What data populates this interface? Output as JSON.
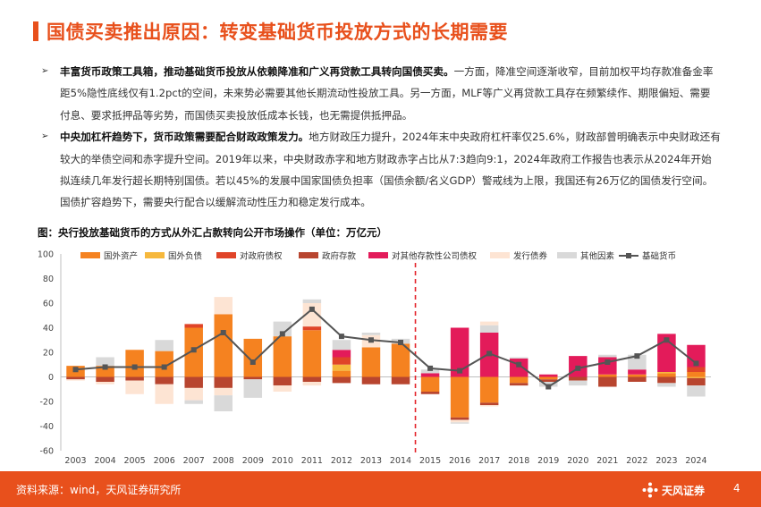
{
  "header": {
    "title": "国债买卖推出原因：转变基础货币投放方式的长期需要"
  },
  "bullets": [
    {
      "bold": "丰富货币政策工具箱，推动基础货币投放从依赖降准和广义再贷款工具转向国债买卖。",
      "text": "一方面，降准空间逐渐收窄，目前加权平均存款准备金率距5%隐性底线仅有1.2pct的空间，未来势必需要其他长期流动性投放工具。另一方面，MLF等广义再贷款工具存在频繁续作、期限偏短、需要付息、要求抵押品等劣势，而国债买卖投放低成本长钱，也无需提供抵押品。"
    },
    {
      "bold": "中央加杠杆趋势下，货币政策需要配合财政政策发力。",
      "text": "地方财政压力提升，2024年末中央政府杠杆率仅25.6%，财政部曾明确表示中央财政还有较大的举债空间和赤字提升空间。2019年以来，中央财政赤字和地方财政赤字占比从7:3趋向9:1，2024年政府工作报告也表示从2024年开始拟连续几年发行超长期特别国债。若以45%的发展中国家国债负担率（国债余额/名义GDP）警戒线为上限，我国还有26万亿的国债发行空间。国债扩容趋势下，需要央行配合以缓解流动性压力和稳定发行成本。"
    }
  ],
  "figure": {
    "caption": "图：央行投放基础货币的方式从外汇占款转向公开市场操作（单位：万亿元）"
  },
  "footer": {
    "source": "资料来源：wind，天风证券研究所",
    "logo_text": "天风证券",
    "page": "4"
  },
  "chart_data": {
    "type": "bar",
    "stacked": true,
    "categories": [
      "2003",
      "2004",
      "2005",
      "2006",
      "2007",
      "2008",
      "2009",
      "2010",
      "2011",
      "2012",
      "2013",
      "2014",
      "2015",
      "2016",
      "2017",
      "2018",
      "2019",
      "2020",
      "2021",
      "2022",
      "2023",
      "2024"
    ],
    "ylim": [
      -60,
      100
    ],
    "yticks": [
      -60,
      -40,
      -20,
      0,
      20,
      40,
      60,
      80,
      100
    ],
    "grid": false,
    "legend_position": "top",
    "divider_after": "2014",
    "series": [
      {
        "name": "国外资产",
        "color": "#f58220",
        "values": [
          9,
          9,
          22,
          21,
          40,
          51,
          31,
          33,
          38,
          5,
          24,
          27,
          -12,
          -33,
          -21,
          -5,
          -2,
          0,
          2,
          2,
          3,
          4
        ]
      },
      {
        "name": "国外负债",
        "color": "#f6b83c",
        "values": [
          0,
          0,
          0,
          0,
          0,
          0,
          0,
          0,
          0,
          5,
          0,
          0,
          0,
          0,
          0,
          0,
          0,
          0,
          0,
          0,
          1,
          -1
        ]
      },
      {
        "name": "对政府债权",
        "color": "#e04428",
        "values": [
          0,
          0,
          0,
          0,
          3,
          0,
          0,
          0,
          3,
          6,
          0,
          0,
          0,
          0,
          0,
          0,
          0,
          0,
          0,
          0,
          0,
          4
        ]
      },
      {
        "name": "政府存款",
        "color": "#b8452f",
        "values": [
          -2,
          -4,
          -3,
          -6,
          -9,
          -9,
          -2,
          -7,
          -4,
          -5,
          -6,
          -6,
          -2,
          -2,
          -2,
          -2,
          -2,
          -3,
          -8,
          -4,
          -5,
          -6
        ]
      },
      {
        "name": "对其他存款性公司债权",
        "color": "#e31b5a",
        "values": [
          0,
          0,
          0,
          0,
          0,
          0,
          0,
          0,
          0,
          6,
          0,
          0,
          3,
          40,
          36,
          15,
          2,
          17,
          14,
          4,
          31,
          18
        ]
      },
      {
        "name": "发行债券",
        "color": "#fde4d3",
        "values": [
          0,
          0,
          0,
          0,
          0,
          0,
          0,
          0,
          0,
          0,
          0,
          0,
          0,
          0,
          0,
          0,
          0,
          0,
          0,
          0,
          0,
          0
        ]
      },
      {
        "name": "其他因素",
        "color": "#d9d9d9",
        "values": [
          0,
          7,
          0,
          9,
          0,
          0,
          0,
          12,
          0,
          8,
          0,
          0,
          3,
          0,
          6,
          1,
          0,
          0,
          2,
          12,
          0,
          0
        ]
      }
    ],
    "neg_extra": [
      {
        "name": "发行债券",
        "color": "#fde4d3",
        "values": [
          -1,
          -2,
          -11,
          -16,
          -10,
          -6,
          0,
          -5,
          -3,
          0,
          0,
          0,
          0,
          -2,
          -1,
          0,
          0,
          0,
          0,
          0,
          0,
          0
        ]
      },
      {
        "name": "其他因素",
        "color": "#d9d9d9",
        "values": [
          0,
          0,
          0,
          0,
          -3,
          -13,
          -15,
          0,
          0,
          0,
          0,
          0,
          0,
          -1,
          0,
          0,
          -4,
          -4,
          0,
          0,
          -3,
          -9
        ]
      }
    ],
    "pos_extra": [
      {
        "name": "发行债券",
        "color": "#fde4d3",
        "values": [
          0,
          0,
          0,
          0,
          0,
          14,
          0,
          0,
          19,
          0,
          10,
          0,
          0,
          0,
          3,
          0,
          0,
          0,
          0,
          0,
          0,
          0
        ]
      },
      {
        "name": "其他因素",
        "color": "#d9d9d9",
        "values": [
          0,
          0,
          0,
          0,
          0,
          0,
          0,
          0,
          3,
          0,
          2,
          4,
          0,
          0,
          0,
          0,
          0,
          0,
          0,
          0,
          0,
          0
        ]
      }
    ],
    "line": {
      "name": "基础货币",
      "color": "#555555",
      "values": [
        6,
        8,
        8,
        8,
        22,
        36,
        12,
        35,
        55,
        33,
        30,
        28,
        7,
        5,
        19,
        10,
        -8,
        7,
        12,
        17,
        30,
        11
      ]
    }
  }
}
